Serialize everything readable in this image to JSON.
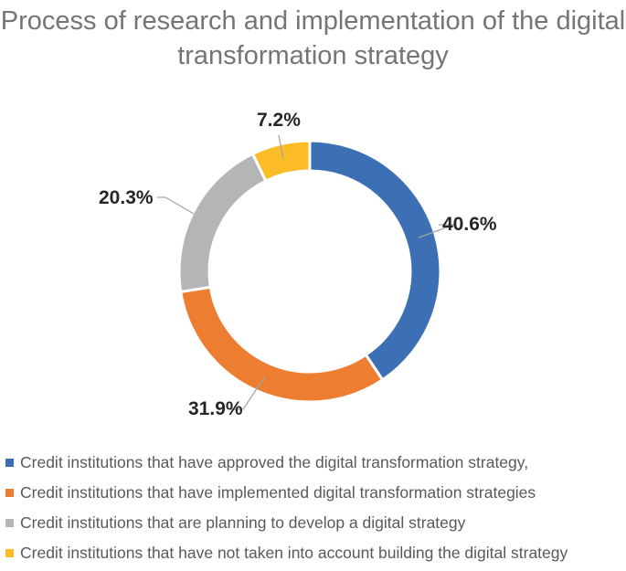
{
  "chart_data": {
    "type": "pie",
    "variant": "donut",
    "title": "Process of research and implementation of the digital transformation strategy",
    "categories": [
      "Credit institutions that have approved the digital transformation strategy,",
      "Credit institutions that have implemented digital transformation strategies",
      "Credit institutions that are planning to develop a digital strategy",
      "Credit institutions that have not taken into account building the digital strategy"
    ],
    "values": [
      40.6,
      31.9,
      20.3,
      7.2
    ],
    "labels": [
      "40.6%",
      "31.9%",
      "20.3%",
      "7.2%"
    ],
    "colors": [
      "#3d6fb4",
      "#ed7d31",
      "#b4b5b7",
      "#fbbc28"
    ],
    "legend_position": "bottom",
    "unit": "%"
  },
  "title_line1": "Process of research and implementation of the digital",
  "title_line2": "transformation strategy",
  "legend": [
    {
      "label": "Credit institutions that have approved the digital transformation strategy,",
      "color": "#3d6fb4"
    },
    {
      "label": "Credit institutions that have implemented digital transformation strategies",
      "color": "#ed7d31"
    },
    {
      "label": "Credit institutions that are planning to develop a digital strategy",
      "color": "#b4b5b7"
    },
    {
      "label": "Credit institutions that have not taken into account building the digital strategy",
      "color": "#fbbc28"
    }
  ]
}
